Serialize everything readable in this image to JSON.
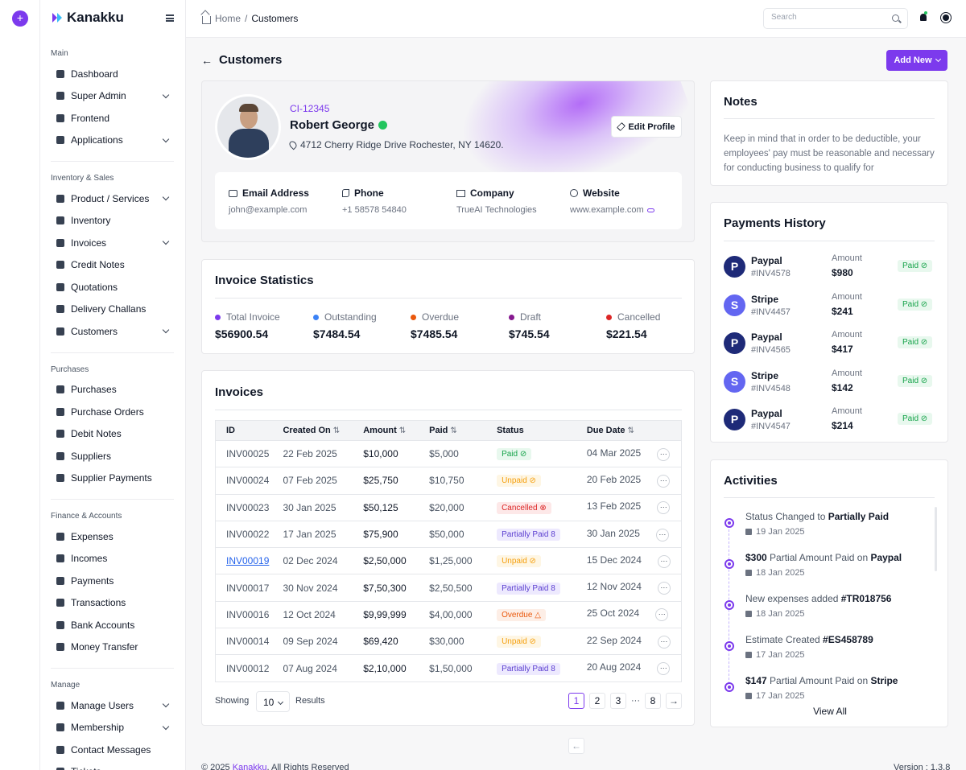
{
  "brand": {
    "name": "Kanakku"
  },
  "sidebar": {
    "sections": [
      {
        "title": "Main",
        "items": [
          {
            "label": "Dashboard",
            "chevron": false
          },
          {
            "label": "Super Admin",
            "chevron": true
          },
          {
            "label": "Frontend",
            "chevron": false
          },
          {
            "label": "Applications",
            "chevron": true
          }
        ]
      },
      {
        "title": "Inventory & Sales",
        "items": [
          {
            "label": "Product / Services",
            "chevron": true
          },
          {
            "label": "Inventory",
            "chevron": false
          },
          {
            "label": "Invoices",
            "chevron": true
          },
          {
            "label": "Credit Notes",
            "chevron": false
          },
          {
            "label": "Quotations",
            "chevron": false
          },
          {
            "label": "Delivery Challans",
            "chevron": false
          },
          {
            "label": "Customers",
            "chevron": true
          }
        ]
      },
      {
        "title": "Purchases",
        "items": [
          {
            "label": "Purchases",
            "chevron": false
          },
          {
            "label": "Purchase Orders",
            "chevron": false
          },
          {
            "label": "Debit Notes",
            "chevron": false
          },
          {
            "label": "Suppliers",
            "chevron": false
          },
          {
            "label": "Supplier Payments",
            "chevron": false
          }
        ]
      },
      {
        "title": "Finance & Accounts",
        "items": [
          {
            "label": "Expenses",
            "chevron": false
          },
          {
            "label": "Incomes",
            "chevron": false
          },
          {
            "label": "Payments",
            "chevron": false
          },
          {
            "label": "Transactions",
            "chevron": false
          },
          {
            "label": "Bank Accounts",
            "chevron": false
          },
          {
            "label": "Money Transfer",
            "chevron": false
          }
        ]
      },
      {
        "title": "Manage",
        "items": [
          {
            "label": "Manage Users",
            "chevron": true
          },
          {
            "label": "Membership",
            "chevron": true
          },
          {
            "label": "Contact Messages",
            "chevron": false
          },
          {
            "label": "Tickets",
            "chevron": true
          }
        ]
      }
    ]
  },
  "topbar": {
    "breadcrumb_home": "Home",
    "breadcrumb_sep": "/",
    "breadcrumb_current": "Customers",
    "search_placeholder": "Search"
  },
  "page": {
    "title": "Customers",
    "add_new_label": "Add New"
  },
  "profile": {
    "id": "CI-12345",
    "name": "Robert George",
    "address": "4712 Cherry Ridge Drive Rochester, NY 14620.",
    "edit_label": "Edit Profile",
    "contacts": [
      {
        "label": "Email Address",
        "value": "john@example.com"
      },
      {
        "label": "Phone",
        "value": "+1 58578 54840"
      },
      {
        "label": "Company",
        "value": "TrueAI Technologies"
      },
      {
        "label": "Website",
        "value": "www.example.com"
      }
    ]
  },
  "stats": {
    "title": "Invoice Statistics",
    "items": [
      {
        "label": "Total Invoice",
        "value": "$56900.54",
        "color": "#7c3aed"
      },
      {
        "label": "Outstanding",
        "value": "$7484.54",
        "color": "#3b82f6"
      },
      {
        "label": "Overdue",
        "value": "$7485.54",
        "color": "#ea580c"
      },
      {
        "label": "Draft",
        "value": "$745.54",
        "color": "#86198f"
      },
      {
        "label": "Cancelled",
        "value": "$221.54",
        "color": "#dc2626"
      }
    ]
  },
  "invoices": {
    "title": "Invoices",
    "columns": [
      "ID",
      "Created On",
      "Amount",
      "Paid",
      "Status",
      "Due Date"
    ],
    "rows": [
      {
        "id": "INV00025",
        "created": "22 Feb 2025",
        "amount": "$10,000",
        "paid": "$5,000",
        "status": "Paid",
        "kind": "paid",
        "due": "04 Mar 2025",
        "link": false
      },
      {
        "id": "INV00024",
        "created": "07 Feb 2025",
        "amount": "$25,750",
        "paid": "$10,750",
        "status": "Unpaid",
        "kind": "unpaid",
        "due": "20 Feb 2025",
        "link": false
      },
      {
        "id": "INV00023",
        "created": "30 Jan 2025",
        "amount": "$50,125",
        "paid": "$20,000",
        "status": "Cancelled",
        "kind": "cancelled",
        "due": "13 Feb 2025",
        "link": false
      },
      {
        "id": "INV00022",
        "created": "17 Jan 2025",
        "amount": "$75,900",
        "paid": "$50,000",
        "status": "Partially Paid",
        "kind": "partial",
        "due": "30 Jan 2025",
        "link": false
      },
      {
        "id": "INV00019",
        "created": "02 Dec 2024",
        "amount": "$2,50,000",
        "paid": "$1,25,000",
        "status": "Unpaid",
        "kind": "unpaid",
        "due": "15 Dec 2024",
        "link": true
      },
      {
        "id": "INV00017",
        "created": "30 Nov 2024",
        "amount": "$7,50,300",
        "paid": "$2,50,500",
        "status": "Partially Paid",
        "kind": "partial",
        "due": "12 Nov 2024",
        "link": false
      },
      {
        "id": "INV00016",
        "created": "12 Oct 2024",
        "amount": "$9,99,999",
        "paid": "$4,00,000",
        "status": "Overdue",
        "kind": "overdue",
        "due": "25 Oct 2024",
        "link": false
      },
      {
        "id": "INV00014",
        "created": "09 Sep 2024",
        "amount": "$69,420",
        "paid": "$30,000",
        "status": "Unpaid",
        "kind": "unpaid",
        "due": "22 Sep 2024",
        "link": false
      },
      {
        "id": "INV00012",
        "created": "07 Aug 2024",
        "amount": "$2,10,000",
        "paid": "$1,50,000",
        "status": "Partially Paid",
        "kind": "partial",
        "due": "20 Aug 2024",
        "link": false
      }
    ],
    "showing_label": "Showing",
    "per_page": "10",
    "results_label": "Results",
    "pages": [
      "1",
      "2",
      "3"
    ],
    "ellipsis": "···",
    "last_page": "8",
    "current_page": "1"
  },
  "notes": {
    "title": "Notes",
    "text": "Keep in mind that in order to be deductible, your employees' pay must be reasonable and necessary for conducting business to qualify for"
  },
  "payments": {
    "title": "Payments History",
    "amount_label": "Amount",
    "items": [
      {
        "method": "Paypal",
        "invoice": "#INV4578",
        "amount": "$980",
        "status": "Paid"
      },
      {
        "method": "Stripe",
        "invoice": "#INV4457",
        "amount": "$241",
        "status": "Paid"
      },
      {
        "method": "Paypal",
        "invoice": "#INV4565",
        "amount": "$417",
        "status": "Paid"
      },
      {
        "method": "Stripe",
        "invoice": "#INV4548",
        "amount": "$142",
        "status": "Paid"
      },
      {
        "method": "Paypal",
        "invoice": "#INV4547",
        "amount": "$214",
        "status": "Paid"
      }
    ]
  },
  "activities": {
    "title": "Activities",
    "items": [
      {
        "pre": "Status Changed to ",
        "bold": "Partially Paid",
        "mid": "",
        "bold2": "",
        "date": "19 Jan 2025"
      },
      {
        "pre": "",
        "bold": "$300",
        "mid": " Partial Amount Paid on ",
        "bold2": "Paypal",
        "date": "18 Jan 2025"
      },
      {
        "pre": "New expenses added ",
        "bold": "#TR018756",
        "mid": "",
        "bold2": "",
        "date": "18 Jan 2025"
      },
      {
        "pre": "Estimate Created  ",
        "bold": "#ES458789",
        "mid": "",
        "bold2": "",
        "date": "17 Jan 2025"
      },
      {
        "pre": "",
        "bold": "$147",
        "mid": " Partial Amount Paid on ",
        "bold2": "Stripe",
        "date": "17 Jan 2025"
      }
    ],
    "view_all": "View All"
  },
  "footer": {
    "copyright_pre": "© 2025 ",
    "copyright_brand": "Kanakku",
    "copyright_post": ", All Rights Reserved",
    "version": "Version : 1.3.8"
  }
}
